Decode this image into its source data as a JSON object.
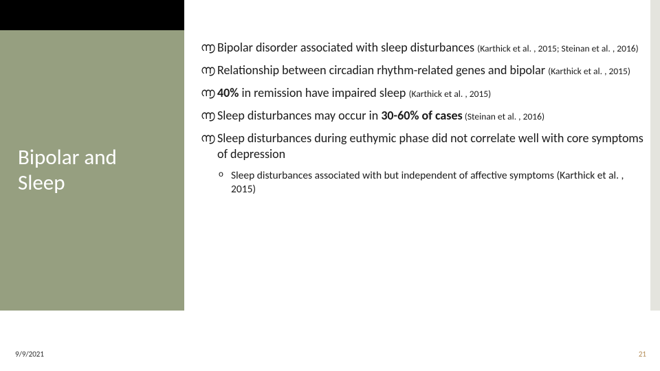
{
  "colors": {
    "topbar": "#000000",
    "sidebar_bg": "#969f80",
    "sidebar_text": "#ffffff",
    "rightstrip": "#e4e4de",
    "body_text": "#1a1a1a",
    "page_number": "#b38b55",
    "background": "#ffffff"
  },
  "sidebar": {
    "title_line1": "Bipolar and",
    "title_line2": "Sleep"
  },
  "bullets": [
    {
      "segments": [
        {
          "text": "Bipolar disorder associated with sleep disturbances ",
          "bold": false,
          "cite": false
        },
        {
          "text": "(Karthick et al. , 2015; Steinan et al. , 2016)",
          "bold": false,
          "cite": true
        }
      ]
    },
    {
      "segments": [
        {
          "text": "Relationship between circadian rhythm-related genes and bipolar ",
          "bold": false,
          "cite": false
        },
        {
          "text": "(Karthick et al. , 2015)",
          "bold": false,
          "cite": true
        }
      ]
    },
    {
      "segments": [
        {
          "text": "40%",
          "bold": true,
          "cite": false
        },
        {
          "text": " in remission have impaired sleep ",
          "bold": false,
          "cite": false
        },
        {
          "text": "(Karthick et al. , 2015)",
          "bold": false,
          "cite": true
        }
      ]
    },
    {
      "segments": [
        {
          "text": "Sleep disturbances may occur in ",
          "bold": false,
          "cite": false
        },
        {
          "text": "30-60% of cases",
          "bold": true,
          "cite": false
        },
        {
          "text": " (Steinan et al. , 2016)",
          "bold": false,
          "cite": true
        }
      ]
    },
    {
      "segments": [
        {
          "text": "Sleep disturbances during euthymic phase did not correlate well with core symptoms of depression",
          "bold": false,
          "cite": false
        }
      ],
      "sub": {
        "text": "Sleep disturbances associated with but independent of affective symptoms (Karthick et al. , 2015)"
      }
    }
  ],
  "footer": {
    "date": "9/9/2021",
    "page": "21"
  },
  "glyphs": {
    "bullet": "൬",
    "sub": "o"
  }
}
